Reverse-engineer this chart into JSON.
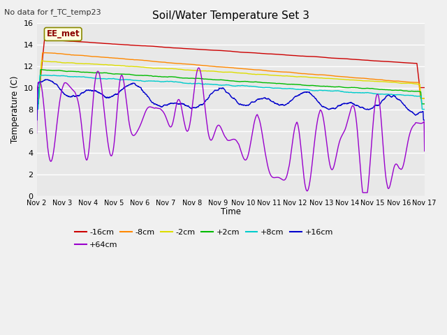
{
  "title": "Soil/Water Temperature Set 3",
  "subtitle": "No data for f_TC_temp23",
  "ylabel": "Temperature (C)",
  "xlabel": "Time",
  "box_label": "EE_met",
  "ylim": [
    0,
    16
  ],
  "series_colors": {
    "-16cm": "#cc0000",
    "-8cm": "#ff8800",
    "-2cm": "#dddd00",
    "+2cm": "#00bb00",
    "+8cm": "#00cccc",
    "+16cm": "#0000cc",
    "+64cm": "#9900cc"
  },
  "xtick_labels": [
    "Nov 2",
    "Nov 3",
    "Nov 4",
    "Nov 5",
    "Nov 6",
    "Nov 7",
    "Nov 8",
    "Nov 9",
    "Nov 10",
    "Nov 11",
    "Nov 12",
    "Nov 13",
    "Nov 14",
    "Nov 15",
    "Nov 16",
    "Nov 17"
  ],
  "legend_row1": [
    "-16cm",
    "-8cm",
    "-2cm",
    "+2cm",
    "+8cm",
    "+16cm"
  ],
  "legend_row2": [
    "+64cm"
  ],
  "fig_facecolor": "#f0f0f0",
  "ax_facecolor": "#e8e8e8",
  "grid_color": "#ffffff",
  "n_points": 2000
}
